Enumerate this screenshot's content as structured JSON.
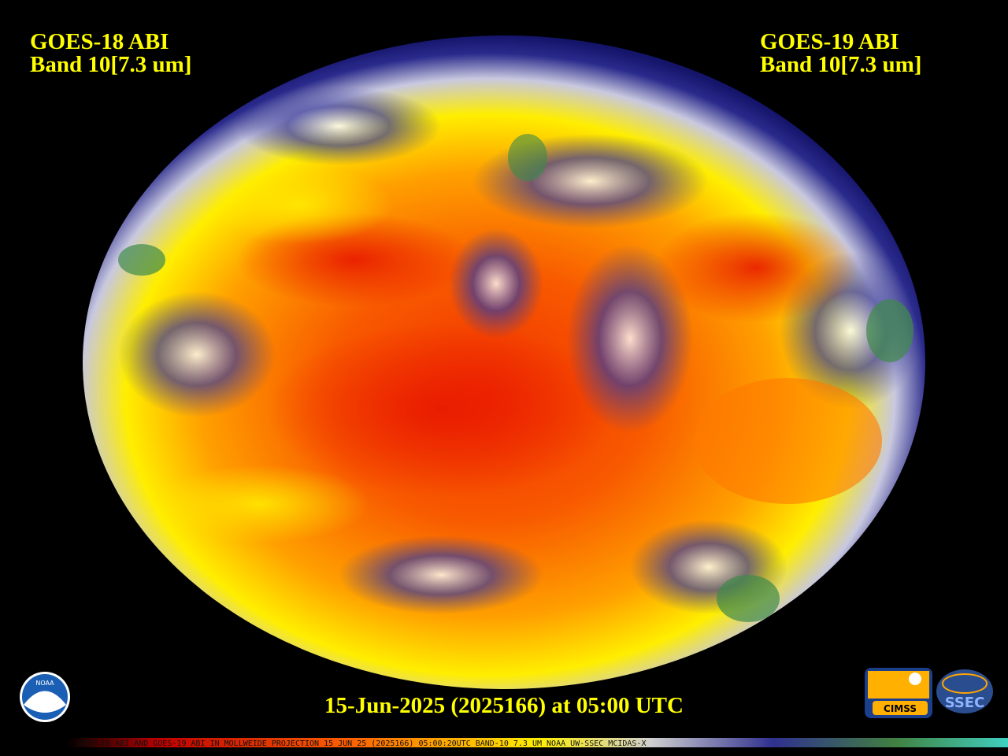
{
  "header": {
    "left_title": "GOES-18 ABI",
    "left_band": "Band 10[7.3 um]",
    "right_title": "GOES-19 ABI",
    "right_band": "Band 10[7.3 um]"
  },
  "timestamp": "15-Jun-2025 (2025166) at 05:00 UTC",
  "footer": "GOES-18 ABI AND GOES-19 ABI IN MOLLWEIDE PROJECTION 15 JUN 25 (2025166) 05:00:20UTC BAND-10 7.3 UM NOAA UW-SSEC MCIDAS-X",
  "logos": {
    "noaa": "NOAA",
    "cimss": "CIMSS",
    "ssec": "SSEC"
  }
}
